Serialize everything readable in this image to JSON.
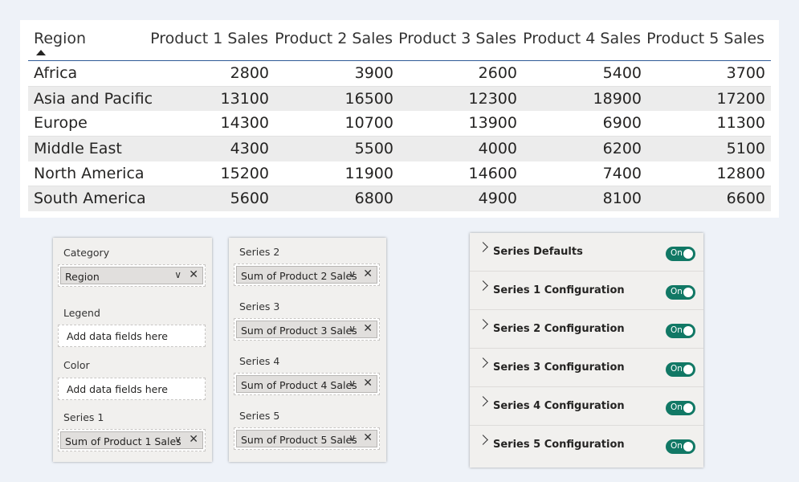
{
  "table": {
    "columns": [
      "Region",
      "Product 1 Sales",
      "Product 2 Sales",
      "Product 3 Sales",
      "Product 4 Sales",
      "Product 5 Sales"
    ],
    "rows": [
      [
        "Africa",
        "2800",
        "3900",
        "2600",
        "5400",
        "3700"
      ],
      [
        "Asia and Pacific",
        "13100",
        "16500",
        "12300",
        "18900",
        "17200"
      ],
      [
        "Europe",
        "14300",
        "10700",
        "13900",
        "6900",
        "11300"
      ],
      [
        "Middle East",
        "4300",
        "5500",
        "4000",
        "6200",
        "5100"
      ],
      [
        "North America",
        "15200",
        "11900",
        "14600",
        "7400",
        "12800"
      ],
      [
        "South America",
        "5600",
        "6800",
        "4900",
        "8100",
        "6600"
      ]
    ]
  },
  "fields_pane_1": {
    "category": {
      "label": "Category",
      "value": "Region"
    },
    "legend": {
      "label": "Legend",
      "placeholder": "Add data fields here"
    },
    "color": {
      "label": "Color",
      "placeholder": "Add data fields here"
    },
    "series1": {
      "label": "Series 1",
      "value": "Sum of Product 1 Sales"
    }
  },
  "fields_pane_2": {
    "series2": {
      "label": "Series 2",
      "value": "Sum of Product 2 Sales"
    },
    "series3": {
      "label": "Series 3",
      "value": "Sum of Product 3 Sales"
    },
    "series4": {
      "label": "Series 4",
      "value": "Sum of Product 4 Sales"
    },
    "series5": {
      "label": "Series 5",
      "value": "Sum of Product 5 Sales"
    }
  },
  "format_pane": {
    "sections": [
      {
        "label": "Series Defaults",
        "toggle": "On"
      },
      {
        "label": "Series 1 Configuration",
        "toggle": "On"
      },
      {
        "label": "Series 2 Configuration",
        "toggle": "On"
      },
      {
        "label": "Series 3 Configuration",
        "toggle": "On"
      },
      {
        "label": "Series 4 Configuration",
        "toggle": "On"
      },
      {
        "label": "Series 5 Configuration",
        "toggle": "On"
      }
    ]
  },
  "icons": {
    "sort": "sort-ascending-icon",
    "chevron": "chevron-down-icon",
    "remove": "close-icon",
    "expand": "chevron-right-icon"
  },
  "colors": {
    "toggle_on": "#117865",
    "header_rule": "#2f5a96",
    "alt_row": "#ececec",
    "background": "#eef2f8"
  }
}
